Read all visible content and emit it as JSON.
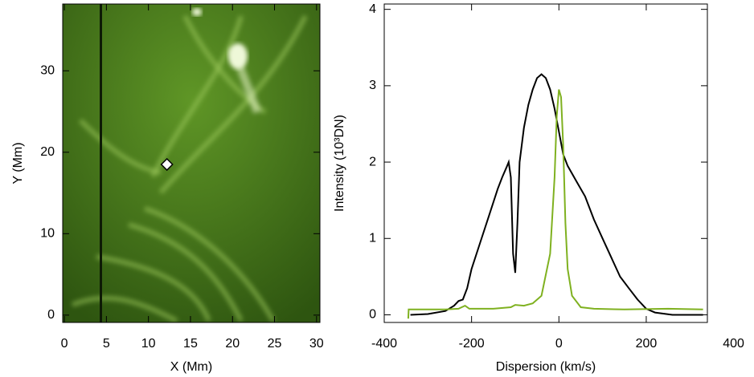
{
  "chart_data": [
    {
      "type": "image",
      "xlabel": "X (Mm)",
      "ylabel": "Y (Mm)",
      "xlim": [
        -0.2,
        30.4
      ],
      "ylim": [
        -0.9,
        38.2
      ],
      "xticks": [
        0,
        5,
        10,
        15,
        20,
        25,
        30
      ],
      "yticks": [
        0,
        10,
        20,
        30
      ],
      "marker": {
        "x": 12.2,
        "y": 18.5
      }
    },
    {
      "type": "line",
      "xlabel": "Dispersion (km/s)",
      "ylabel": "Intensity (10³DN)",
      "xlim": [
        -400,
        340
      ],
      "ylim": [
        -0.1,
        4.07
      ],
      "xticks": [
        -400,
        -200,
        0,
        200,
        400
      ],
      "yticks": [
        0,
        1,
        2,
        3,
        4
      ],
      "series": [
        {
          "color": "#000000",
          "x": [
            -340,
            -300,
            -260,
            -240,
            -230,
            -220,
            -210,
            -200,
            -180,
            -160,
            -140,
            -130,
            -120,
            -115,
            -110,
            -105,
            -100,
            -95,
            -90,
            -80,
            -70,
            -60,
            -50,
            -40,
            -30,
            -20,
            -10,
            0,
            10,
            20,
            40,
            60,
            80,
            100,
            120,
            140,
            160,
            180,
            200,
            220,
            260,
            330
          ],
          "values": [
            0,
            0.01,
            0.05,
            0.12,
            0.18,
            0.2,
            0.35,
            0.6,
            0.95,
            1.3,
            1.65,
            1.8,
            1.93,
            2.0,
            1.8,
            0.8,
            0.55,
            1.2,
            2.0,
            2.45,
            2.75,
            2.95,
            3.1,
            3.15,
            3.1,
            2.95,
            2.7,
            2.4,
            2.1,
            1.95,
            1.75,
            1.55,
            1.25,
            1.0,
            0.75,
            0.5,
            0.35,
            0.2,
            0.08,
            0.03,
            0,
            0
          ]
        },
        {
          "color": "#7fb120",
          "x": [
            -345,
            -344,
            -300,
            -260,
            -230,
            -215,
            -205,
            -150,
            -110,
            -100,
            -80,
            -60,
            -40,
            -20,
            -10,
            -5,
            0,
            5,
            10,
            15,
            20,
            30,
            50,
            80,
            150,
            250,
            330
          ],
          "values": [
            -0.05,
            0.07,
            0.07,
            0.07,
            0.08,
            0.12,
            0.08,
            0.08,
            0.1,
            0.13,
            0.12,
            0.15,
            0.25,
            0.8,
            1.8,
            2.6,
            2.95,
            2.85,
            2.2,
            1.2,
            0.6,
            0.25,
            0.1,
            0.08,
            0.07,
            0.08,
            0.07
          ]
        }
      ]
    }
  ]
}
